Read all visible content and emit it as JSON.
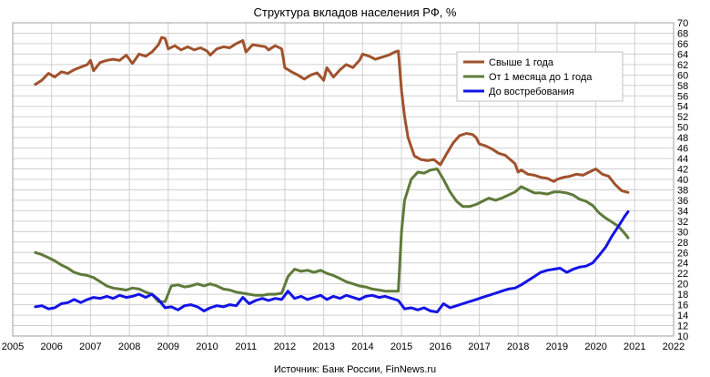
{
  "chart_data": {
    "type": "line",
    "title": "Структура вкладов населения РФ, %",
    "source": "Источник: Банк России, FinNews.ru",
    "xlim": [
      2005,
      2022
    ],
    "ylim": [
      10,
      70
    ],
    "x_ticks": [
      2005,
      2006,
      2007,
      2008,
      2009,
      2010,
      2011,
      2012,
      2013,
      2014,
      2015,
      2016,
      2017,
      2018,
      2019,
      2020,
      2021,
      2022
    ],
    "y_ticks": [
      10,
      12,
      14,
      16,
      18,
      20,
      22,
      24,
      26,
      28,
      30,
      32,
      34,
      36,
      38,
      40,
      42,
      44,
      46,
      48,
      50,
      52,
      54,
      56,
      58,
      60,
      62,
      64,
      66,
      68,
      70
    ],
    "grid": true,
    "legend_position": "top-right",
    "series": [
      {
        "name": "Свыше 1 года",
        "color": "#a0522d",
        "points": [
          [
            2005.58,
            58.2
          ],
          [
            2005.75,
            59.0
          ],
          [
            2005.92,
            60.3
          ],
          [
            2006.08,
            59.6
          ],
          [
            2006.25,
            60.6
          ],
          [
            2006.42,
            60.3
          ],
          [
            2006.58,
            61.0
          ],
          [
            2006.75,
            61.5
          ],
          [
            2006.92,
            62.0
          ],
          [
            2007.0,
            62.8
          ],
          [
            2007.08,
            60.8
          ],
          [
            2007.25,
            62.4
          ],
          [
            2007.42,
            62.8
          ],
          [
            2007.58,
            63.0
          ],
          [
            2007.75,
            62.8
          ],
          [
            2007.92,
            63.8
          ],
          [
            2008.0,
            63.0
          ],
          [
            2008.08,
            62.2
          ],
          [
            2008.25,
            64.0
          ],
          [
            2008.42,
            63.6
          ],
          [
            2008.58,
            64.4
          ],
          [
            2008.75,
            65.8
          ],
          [
            2008.83,
            67.2
          ],
          [
            2008.92,
            67.0
          ],
          [
            2009.0,
            65.0
          ],
          [
            2009.17,
            65.6
          ],
          [
            2009.33,
            64.8
          ],
          [
            2009.5,
            65.4
          ],
          [
            2009.67,
            64.8
          ],
          [
            2009.83,
            65.2
          ],
          [
            2010.0,
            64.6
          ],
          [
            2010.08,
            63.8
          ],
          [
            2010.25,
            65.0
          ],
          [
            2010.42,
            65.4
          ],
          [
            2010.58,
            65.2
          ],
          [
            2010.75,
            66.0
          ],
          [
            2010.92,
            66.6
          ],
          [
            2011.0,
            64.4
          ],
          [
            2011.17,
            65.8
          ],
          [
            2011.33,
            65.6
          ],
          [
            2011.5,
            65.4
          ],
          [
            2011.58,
            64.8
          ],
          [
            2011.75,
            65.6
          ],
          [
            2011.92,
            65.0
          ],
          [
            2012.0,
            61.4
          ],
          [
            2012.17,
            60.6
          ],
          [
            2012.33,
            60.0
          ],
          [
            2012.5,
            59.2
          ],
          [
            2012.67,
            60.0
          ],
          [
            2012.83,
            60.4
          ],
          [
            2013.0,
            59.0
          ],
          [
            2013.08,
            61.4
          ],
          [
            2013.25,
            59.6
          ],
          [
            2013.42,
            61.0
          ],
          [
            2013.58,
            62.0
          ],
          [
            2013.75,
            61.4
          ],
          [
            2013.92,
            62.8
          ],
          [
            2014.0,
            64.0
          ],
          [
            2014.17,
            63.6
          ],
          [
            2014.33,
            63.0
          ],
          [
            2014.5,
            63.4
          ],
          [
            2014.67,
            63.8
          ],
          [
            2014.83,
            64.4
          ],
          [
            2014.92,
            64.6
          ],
          [
            2015.0,
            57.0
          ],
          [
            2015.08,
            52.0
          ],
          [
            2015.17,
            48.0
          ],
          [
            2015.33,
            44.5
          ],
          [
            2015.5,
            43.8
          ],
          [
            2015.67,
            43.6
          ],
          [
            2015.83,
            43.8
          ],
          [
            2016.0,
            42.8
          ],
          [
            2016.17,
            45.0
          ],
          [
            2016.33,
            47.0
          ],
          [
            2016.5,
            48.4
          ],
          [
            2016.67,
            48.8
          ],
          [
            2016.83,
            48.6
          ],
          [
            2016.92,
            48.0
          ],
          [
            2017.0,
            46.8
          ],
          [
            2017.17,
            46.4
          ],
          [
            2017.33,
            45.8
          ],
          [
            2017.5,
            45.0
          ],
          [
            2017.67,
            44.6
          ],
          [
            2017.83,
            43.6
          ],
          [
            2017.92,
            43.0
          ],
          [
            2018.0,
            41.4
          ],
          [
            2018.08,
            41.8
          ],
          [
            2018.25,
            41.0
          ],
          [
            2018.42,
            40.8
          ],
          [
            2018.58,
            40.4
          ],
          [
            2018.75,
            40.2
          ],
          [
            2018.92,
            39.6
          ],
          [
            2019.0,
            40.0
          ],
          [
            2019.17,
            40.4
          ],
          [
            2019.33,
            40.6
          ],
          [
            2019.5,
            41.0
          ],
          [
            2019.67,
            40.8
          ],
          [
            2019.83,
            41.4
          ],
          [
            2020.0,
            42.0
          ],
          [
            2020.17,
            41.0
          ],
          [
            2020.33,
            40.6
          ],
          [
            2020.5,
            39.0
          ],
          [
            2020.67,
            37.8
          ],
          [
            2020.83,
            37.5
          ]
        ]
      },
      {
        "name": "От 1 месяца до 1 года",
        "color": "#5f7a3a",
        "points": [
          [
            2005.58,
            26.0
          ],
          [
            2005.75,
            25.6
          ],
          [
            2005.92,
            25.0
          ],
          [
            2006.08,
            24.4
          ],
          [
            2006.25,
            23.6
          ],
          [
            2006.42,
            23.0
          ],
          [
            2006.58,
            22.2
          ],
          [
            2006.75,
            21.8
          ],
          [
            2006.92,
            21.6
          ],
          [
            2007.08,
            21.2
          ],
          [
            2007.25,
            20.4
          ],
          [
            2007.42,
            19.6
          ],
          [
            2007.58,
            19.2
          ],
          [
            2007.75,
            19.0
          ],
          [
            2007.92,
            18.8
          ],
          [
            2008.08,
            19.2
          ],
          [
            2008.25,
            19.0
          ],
          [
            2008.42,
            18.4
          ],
          [
            2008.58,
            18.0
          ],
          [
            2008.75,
            16.6
          ],
          [
            2008.92,
            16.6
          ],
          [
            2009.08,
            19.6
          ],
          [
            2009.25,
            19.8
          ],
          [
            2009.42,
            19.4
          ],
          [
            2009.58,
            19.6
          ],
          [
            2009.75,
            20.0
          ],
          [
            2009.92,
            19.6
          ],
          [
            2010.08,
            20.0
          ],
          [
            2010.25,
            19.6
          ],
          [
            2010.42,
            19.0
          ],
          [
            2010.58,
            18.8
          ],
          [
            2010.75,
            18.4
          ],
          [
            2010.92,
            18.2
          ],
          [
            2011.08,
            18.0
          ],
          [
            2011.25,
            17.8
          ],
          [
            2011.42,
            17.8
          ],
          [
            2011.58,
            18.0
          ],
          [
            2011.75,
            18.0
          ],
          [
            2011.92,
            18.2
          ],
          [
            2012.08,
            21.4
          ],
          [
            2012.25,
            22.8
          ],
          [
            2012.42,
            22.4
          ],
          [
            2012.58,
            22.6
          ],
          [
            2012.75,
            22.2
          ],
          [
            2012.92,
            22.6
          ],
          [
            2013.08,
            22.0
          ],
          [
            2013.25,
            21.6
          ],
          [
            2013.42,
            21.0
          ],
          [
            2013.58,
            20.4
          ],
          [
            2013.75,
            20.0
          ],
          [
            2013.92,
            19.6
          ],
          [
            2014.08,
            19.4
          ],
          [
            2014.25,
            19.0
          ],
          [
            2014.42,
            18.8
          ],
          [
            2014.58,
            18.6
          ],
          [
            2014.75,
            18.6
          ],
          [
            2014.92,
            18.6
          ],
          [
            2015.0,
            30.0
          ],
          [
            2015.08,
            36.0
          ],
          [
            2015.25,
            40.0
          ],
          [
            2015.42,
            41.4
          ],
          [
            2015.58,
            41.2
          ],
          [
            2015.75,
            41.8
          ],
          [
            2015.92,
            42.0
          ],
          [
            2016.08,
            40.0
          ],
          [
            2016.25,
            37.6
          ],
          [
            2016.42,
            35.8
          ],
          [
            2016.58,
            34.8
          ],
          [
            2016.75,
            34.8
          ],
          [
            2016.92,
            35.2
          ],
          [
            2017.08,
            35.8
          ],
          [
            2017.25,
            36.4
          ],
          [
            2017.42,
            36.0
          ],
          [
            2017.58,
            36.4
          ],
          [
            2017.75,
            37.0
          ],
          [
            2017.92,
            37.6
          ],
          [
            2018.08,
            38.6
          ],
          [
            2018.25,
            38.0
          ],
          [
            2018.42,
            37.4
          ],
          [
            2018.58,
            37.4
          ],
          [
            2018.75,
            37.2
          ],
          [
            2018.92,
            37.6
          ],
          [
            2019.08,
            37.6
          ],
          [
            2019.25,
            37.4
          ],
          [
            2019.42,
            37.0
          ],
          [
            2019.58,
            36.2
          ],
          [
            2019.75,
            35.8
          ],
          [
            2019.92,
            35.0
          ],
          [
            2020.08,
            33.6
          ],
          [
            2020.25,
            32.6
          ],
          [
            2020.42,
            31.8
          ],
          [
            2020.58,
            31.0
          ],
          [
            2020.75,
            29.6
          ],
          [
            2020.83,
            28.8
          ]
        ]
      },
      {
        "name": "До востребования",
        "color": "#1414e6",
        "points": [
          [
            2005.58,
            15.6
          ],
          [
            2005.75,
            15.8
          ],
          [
            2005.92,
            15.2
          ],
          [
            2006.08,
            15.4
          ],
          [
            2006.25,
            16.2
          ],
          [
            2006.42,
            16.4
          ],
          [
            2006.58,
            17.0
          ],
          [
            2006.75,
            16.4
          ],
          [
            2006.92,
            17.0
          ],
          [
            2007.08,
            17.4
          ],
          [
            2007.25,
            17.2
          ],
          [
            2007.42,
            17.6
          ],
          [
            2007.58,
            17.2
          ],
          [
            2007.75,
            17.8
          ],
          [
            2007.92,
            17.4
          ],
          [
            2008.08,
            17.6
          ],
          [
            2008.25,
            18.0
          ],
          [
            2008.42,
            17.4
          ],
          [
            2008.58,
            18.0
          ],
          [
            2008.75,
            17.0
          ],
          [
            2008.92,
            15.4
          ],
          [
            2009.08,
            15.6
          ],
          [
            2009.25,
            15.0
          ],
          [
            2009.42,
            15.8
          ],
          [
            2009.58,
            16.0
          ],
          [
            2009.75,
            15.6
          ],
          [
            2009.92,
            14.8
          ],
          [
            2010.08,
            15.4
          ],
          [
            2010.25,
            15.8
          ],
          [
            2010.42,
            15.6
          ],
          [
            2010.58,
            16.0
          ],
          [
            2010.75,
            15.8
          ],
          [
            2010.92,
            17.4
          ],
          [
            2011.08,
            16.2
          ],
          [
            2011.25,
            16.8
          ],
          [
            2011.42,
            17.2
          ],
          [
            2011.58,
            16.8
          ],
          [
            2011.75,
            17.2
          ],
          [
            2011.92,
            17.0
          ],
          [
            2012.08,
            18.6
          ],
          [
            2012.25,
            17.2
          ],
          [
            2012.42,
            17.6
          ],
          [
            2012.58,
            17.0
          ],
          [
            2012.75,
            17.4
          ],
          [
            2012.92,
            17.8
          ],
          [
            2013.08,
            17.0
          ],
          [
            2013.25,
            17.6
          ],
          [
            2013.42,
            17.2
          ],
          [
            2013.58,
            17.8
          ],
          [
            2013.75,
            17.4
          ],
          [
            2013.92,
            17.0
          ],
          [
            2014.08,
            17.6
          ],
          [
            2014.25,
            17.8
          ],
          [
            2014.42,
            17.4
          ],
          [
            2014.58,
            17.6
          ],
          [
            2014.75,
            17.2
          ],
          [
            2014.92,
            16.8
          ],
          [
            2015.08,
            15.2
          ],
          [
            2015.25,
            15.4
          ],
          [
            2015.42,
            15.0
          ],
          [
            2015.58,
            15.4
          ],
          [
            2015.75,
            14.8
          ],
          [
            2015.92,
            14.6
          ],
          [
            2016.08,
            16.2
          ],
          [
            2016.25,
            15.4
          ],
          [
            2016.42,
            15.8
          ],
          [
            2016.58,
            16.2
          ],
          [
            2016.75,
            16.6
          ],
          [
            2016.92,
            17.0
          ],
          [
            2017.08,
            17.4
          ],
          [
            2017.25,
            17.8
          ],
          [
            2017.42,
            18.2
          ],
          [
            2017.58,
            18.6
          ],
          [
            2017.75,
            19.0
          ],
          [
            2017.92,
            19.2
          ],
          [
            2018.08,
            19.8
          ],
          [
            2018.25,
            20.6
          ],
          [
            2018.42,
            21.4
          ],
          [
            2018.58,
            22.2
          ],
          [
            2018.75,
            22.6
          ],
          [
            2018.92,
            22.8
          ],
          [
            2019.08,
            23.0
          ],
          [
            2019.25,
            22.2
          ],
          [
            2019.42,
            22.8
          ],
          [
            2019.58,
            23.2
          ],
          [
            2019.75,
            23.4
          ],
          [
            2019.92,
            24.0
          ],
          [
            2020.08,
            25.4
          ],
          [
            2020.25,
            27.0
          ],
          [
            2020.42,
            29.2
          ],
          [
            2020.58,
            31.0
          ],
          [
            2020.75,
            33.0
          ],
          [
            2020.83,
            33.8
          ]
        ]
      }
    ]
  }
}
